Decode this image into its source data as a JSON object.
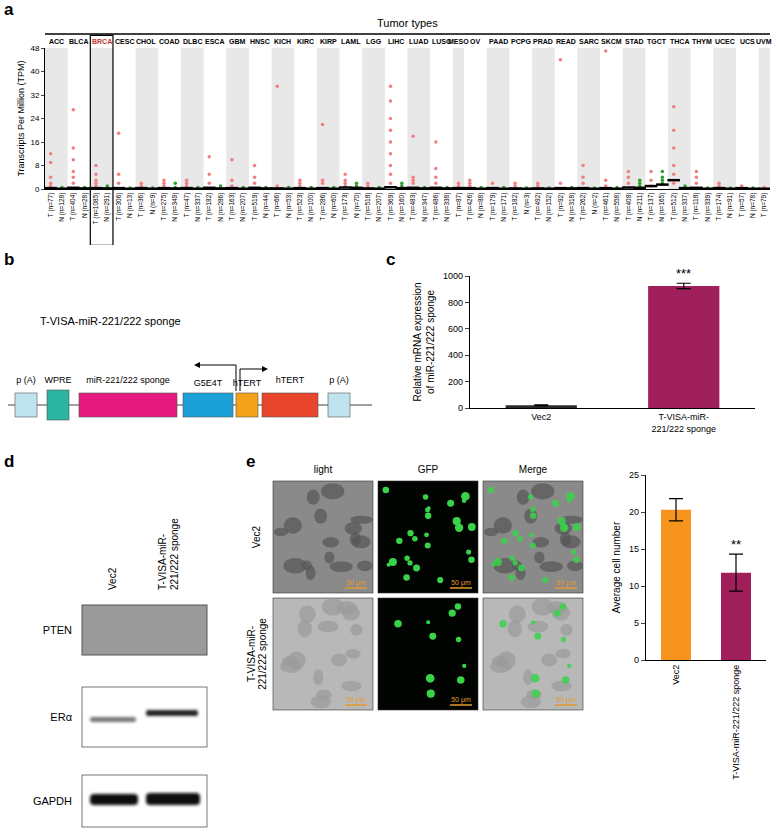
{
  "chart_data": [
    {
      "panel": "a",
      "type": "scatter",
      "title": "Tumor types",
      "ylabel": "Transcripts Per Million (TPM)",
      "ylim": [
        0,
        48
      ],
      "yticks": [
        0,
        8,
        16,
        24,
        32,
        40,
        48
      ],
      "grid": false,
      "highlight": "BRCA",
      "tumor_types": [
        {
          "name": "ACC",
          "groups": [
            {
              "name": "T (n=77)",
              "color": "#f07f82",
              "median": 0.3,
              "values": [
                1,
                2,
                4,
                9,
                12
              ]
            },
            {
              "name": "N (n=128)",
              "color": "#2ca02c",
              "median": 0.1,
              "values": [
                0.5
              ]
            }
          ]
        },
        {
          "name": "BLCA",
          "groups": [
            {
              "name": "T (n=404)",
              "color": "#f07f82",
              "median": 0.4,
              "values": [
                2,
                4,
                6,
                10,
                14,
                27
              ]
            },
            {
              "name": "N (n=28)",
              "color": "#2ca02c",
              "median": 0.2,
              "values": [
                0.5
              ]
            }
          ]
        },
        {
          "name": "BRCA",
          "groups": [
            {
              "name": "T (n=1085)",
              "color": "#f07f82",
              "median": 0.3,
              "values": [
                1,
                2,
                3,
                5,
                8
              ]
            },
            {
              "name": "N (n=291)",
              "color": "#2ca02c",
              "median": 0.2,
              "values": [
                0.5,
                1
              ]
            }
          ]
        },
        {
          "name": "CESC",
          "groups": [
            {
              "name": "T (n=306)",
              "color": "#f07f82",
              "median": 0.3,
              "values": [
                2,
                5,
                19
              ]
            },
            {
              "name": "N (n=13)",
              "color": "#2ca02c",
              "median": 0.1,
              "values": [
                0.3
              ]
            }
          ]
        },
        {
          "name": "CHOL",
          "groups": [
            {
              "name": "T (n=36)",
              "color": "#f07f82",
              "median": 0.3,
              "values": [
                1,
                2
              ]
            },
            {
              "name": "N (n=9)",
              "color": "#2ca02c",
              "median": 0.1,
              "values": [
                0.3
              ]
            }
          ]
        },
        {
          "name": "COAD",
          "groups": [
            {
              "name": "T (n=275)",
              "color": "#f07f82",
              "median": 0.3,
              "values": [
                1,
                2,
                3
              ]
            },
            {
              "name": "N (n=349)",
              "color": "#2ca02c",
              "median": 0.2,
              "values": [
                0.5,
                2
              ]
            }
          ]
        },
        {
          "name": "DLBC",
          "groups": [
            {
              "name": "T (n=47)",
              "color": "#f07f82",
              "median": 0.3,
              "values": [
                1,
                2,
                3
              ]
            },
            {
              "name": "N (n=337)",
              "color": "#2ca02c",
              "median": 0.1,
              "values": [
                0.5
              ]
            }
          ]
        },
        {
          "name": "ESCA",
          "groups": [
            {
              "name": "T (n=182)",
              "color": "#f07f82",
              "median": 0.4,
              "values": [
                2,
                5,
                11
              ]
            },
            {
              "name": "N (n=286)",
              "color": "#2ca02c",
              "median": 0.2,
              "values": [
                0.5,
                1
              ]
            }
          ]
        },
        {
          "name": "GBM",
          "groups": [
            {
              "name": "T (n=163)",
              "color": "#f07f82",
              "median": 0.3,
              "values": [
                1,
                3,
                10
              ]
            },
            {
              "name": "N (n=207)",
              "color": "#2ca02c",
              "median": 0.1,
              "values": [
                0.5
              ]
            }
          ]
        },
        {
          "name": "HNSC",
          "groups": [
            {
              "name": "T (n=519)",
              "color": "#f07f82",
              "median": 0.4,
              "values": [
                2,
                4,
                8
              ]
            },
            {
              "name": "N (n=44)",
              "color": "#2ca02c",
              "median": 0.2,
              "values": [
                0.5
              ]
            }
          ]
        },
        {
          "name": "KICH",
          "groups": [
            {
              "name": "T (n=66)",
              "color": "#f07f82",
              "median": 0.2,
              "values": [
                1,
                35
              ]
            },
            {
              "name": "N (n=53)",
              "color": "#2ca02c",
              "median": 0.1,
              "values": [
                0.5
              ]
            }
          ]
        },
        {
          "name": "KIRC",
          "groups": [
            {
              "name": "T (n=523)",
              "color": "#f07f82",
              "median": 0.3,
              "values": [
                1,
                2,
                3
              ]
            },
            {
              "name": "N (n=100)",
              "color": "#2ca02c",
              "median": 0.1,
              "values": [
                0.5
              ]
            }
          ]
        },
        {
          "name": "KIRP",
          "groups": [
            {
              "name": "T (n=286)",
              "color": "#f07f82",
              "median": 0.3,
              "values": [
                2,
                3,
                22
              ]
            },
            {
              "name": "N (n=60)",
              "color": "#2ca02c",
              "median": 0.1,
              "values": [
                0.5
              ]
            }
          ]
        },
        {
          "name": "LAML",
          "groups": [
            {
              "name": "T (n=173)",
              "color": "#f07f82",
              "median": 0.5,
              "values": [
                1,
                2,
                3,
                5
              ]
            },
            {
              "name": "N (n=70)",
              "color": "#2ca02c",
              "median": 0.4,
              "values": [
                1,
                2
              ]
            }
          ]
        },
        {
          "name": "LGG",
          "groups": [
            {
              "name": "T (n=518)",
              "color": "#f07f82",
              "median": 0.2,
              "values": [
                1,
                2
              ]
            },
            {
              "name": "N (n=207)",
              "color": "#2ca02c",
              "median": 0.1,
              "values": [
                0.5
              ]
            }
          ]
        },
        {
          "name": "LIHC",
          "groups": [
            {
              "name": "T (n=369)",
              "color": "#f07f82",
              "median": 0.6,
              "values": [
                2,
                5,
                8,
                12,
                16,
                20,
                24,
                30,
                35
              ]
            },
            {
              "name": "N (n=160)",
              "color": "#2ca02c",
              "median": 0.3,
              "values": [
                1,
                2
              ]
            }
          ]
        },
        {
          "name": "LUAD",
          "groups": [
            {
              "name": "T (n=483)",
              "color": "#f07f82",
              "median": 0.4,
              "values": [
                2,
                3,
                4,
                18
              ]
            },
            {
              "name": "N (n=347)",
              "color": "#2ca02c",
              "median": 0.2,
              "values": [
                0.5
              ]
            }
          ]
        },
        {
          "name": "LUSC",
          "groups": [
            {
              "name": "T (n=486)",
              "color": "#f07f82",
              "median": 0.4,
              "values": [
                2,
                4,
                7,
                16
              ]
            },
            {
              "name": "N (n=338)",
              "color": "#2ca02c",
              "median": 0.2,
              "values": [
                0.5
              ]
            }
          ]
        },
        {
          "name": "MESO",
          "groups": [
            {
              "name": "T (n=87)",
              "color": "#f07f82",
              "median": 0.3,
              "values": [
                1,
                2
              ]
            }
          ]
        },
        {
          "name": "OV",
          "groups": [
            {
              "name": "T (n=426)",
              "color": "#f07f82",
              "median": 0.3,
              "values": [
                1,
                2,
                3
              ]
            },
            {
              "name": "N (n=88)",
              "color": "#2ca02c",
              "median": 0.1,
              "values": [
                0.5
              ]
            }
          ]
        },
        {
          "name": "PAAD",
          "groups": [
            {
              "name": "T (n=179)",
              "color": "#f07f82",
              "median": 0.3,
              "values": [
                2
              ]
            },
            {
              "name": "N (n=171)",
              "color": "#2ca02c",
              "median": 0.1,
              "values": [
                0.5
              ]
            }
          ]
        },
        {
          "name": "PCPG",
          "groups": [
            {
              "name": "T (n=182)",
              "color": "#f07f82",
              "median": 0.2,
              "values": [
                1,
                2
              ]
            },
            {
              "name": "N (n=3)",
              "color": "#2ca02c",
              "median": 0.1,
              "values": [
                0.3
              ]
            }
          ]
        },
        {
          "name": "PRAD",
          "groups": [
            {
              "name": "T (n=492)",
              "color": "#f07f82",
              "median": 0.2,
              "values": [
                1,
                2
              ]
            },
            {
              "name": "N (n=152)",
              "color": "#2ca02c",
              "median": 0.1,
              "values": [
                0.3
              ]
            }
          ]
        },
        {
          "name": "READ",
          "groups": [
            {
              "name": "T (n=92)",
              "color": "#f07f82",
              "median": 0.3,
              "values": [
                2,
                44
              ]
            },
            {
              "name": "N (n=318)",
              "color": "#2ca02c",
              "median": 0.2,
              "values": [
                0.5
              ]
            }
          ]
        },
        {
          "name": "SARC",
          "groups": [
            {
              "name": "T (n=262)",
              "color": "#f07f82",
              "median": 0.3,
              "values": [
                2,
                4,
                8
              ]
            },
            {
              "name": "N (n=2)",
              "color": "#2ca02c",
              "median": 0.1,
              "values": [
                0.3
              ]
            }
          ]
        },
        {
          "name": "SKCM",
          "groups": [
            {
              "name": "T (n=461)",
              "color": "#f07f82",
              "median": 0.3,
              "values": [
                1,
                3,
                47
              ]
            },
            {
              "name": "N (n=558)",
              "color": "#2ca02c",
              "median": 0.1,
              "values": [
                0.5
              ]
            }
          ]
        },
        {
          "name": "STAD",
          "groups": [
            {
              "name": "T (n=408)",
              "color": "#f07f82",
              "median": 0.5,
              "values": [
                2,
                4,
                6
              ]
            },
            {
              "name": "N (n=211)",
              "color": "#2ca02c",
              "median": 0.4,
              "values": [
                1,
                2,
                3
              ]
            }
          ]
        },
        {
          "name": "TGCT",
          "groups": [
            {
              "name": "T (n=137)",
              "color": "#f07f82",
              "median": 1,
              "values": [
                1,
                3,
                6
              ]
            },
            {
              "name": "N (n=165)",
              "color": "#2ca02c",
              "median": 1.5,
              "values": [
                2,
                3,
                4,
                6
              ]
            }
          ]
        },
        {
          "name": "THCA",
          "groups": [
            {
              "name": "T (n=512)",
              "color": "#f07f82",
              "median": 3,
              "values": [
                2,
                5,
                8,
                14,
                20,
                28
              ]
            },
            {
              "name": "N (n=337)",
              "color": "#2ca02c",
              "median": 0.3,
              "values": [
                0.5,
                1
              ]
            }
          ]
        },
        {
          "name": "THYM",
          "groups": [
            {
              "name": "T (n=118)",
              "color": "#f07f82",
              "median": 0.4,
              "values": [
                2,
                4,
                6
              ]
            },
            {
              "name": "N (n=339)",
              "color": "#2ca02c",
              "median": 0.1,
              "values": [
                0.3
              ]
            }
          ]
        },
        {
          "name": "UCEC",
          "groups": [
            {
              "name": "T (n=174)",
              "color": "#f07f82",
              "median": 0.3,
              "values": [
                1,
                2
              ]
            },
            {
              "name": "N (n=91)",
              "color": "#2ca02c",
              "median": 0.1,
              "values": [
                0.3
              ]
            }
          ]
        },
        {
          "name": "UCS",
          "groups": [
            {
              "name": "T (n=57)",
              "color": "#f07f82",
              "median": 0.3,
              "values": [
                1
              ]
            },
            {
              "name": "N (n=78)",
              "color": "#2ca02c",
              "median": 0.1,
              "values": [
                0.3
              ]
            }
          ]
        },
        {
          "name": "UVM",
          "groups": [
            {
              "name": "T (n=79)",
              "color": "#f07f82",
              "median": 0.1,
              "values": [
                0.5
              ]
            }
          ]
        }
      ]
    },
    {
      "panel": "c",
      "type": "bar",
      "ylabel": [
        "Relative mRNA expression",
        "of miR-221/222 sponge"
      ],
      "categories": [
        "Vec2",
        "T-VISA-miR-221/222 sponge"
      ],
      "values": [
        20,
        925
      ],
      "errors": [
        3,
        20
      ],
      "colors": [
        "#2b2b2b",
        "#9e1f5a"
      ],
      "ylim": [
        0,
        1000
      ],
      "yticks": [
        0,
        200,
        400,
        600,
        800,
        1000
      ],
      "grid": false,
      "annotations": [
        {
          "category": "T-VISA-miR-221/222 sponge",
          "text": "***"
        }
      ]
    },
    {
      "panel": "e",
      "type": "bar",
      "ylabel": "Average cell number",
      "categories": [
        "Vec2",
        "T-VISA-miR-221/222 sponge"
      ],
      "values": [
        20.3,
        11.8
      ],
      "errors": [
        1.5,
        2.5
      ],
      "colors": [
        "#f7941d",
        "#9e1f5a"
      ],
      "ylim": [
        0,
        25
      ],
      "yticks": [
        0,
        5,
        10,
        15,
        20,
        25
      ],
      "grid": false,
      "annotations": [
        {
          "category": "T-VISA-miR-221/222 sponge",
          "text": "**"
        }
      ]
    }
  ],
  "panel_b": {
    "label": "b",
    "title": "T-VISA-miR-221/222 sponge",
    "elements": [
      {
        "label": "p (A)",
        "color": "#bfe3ef"
      },
      {
        "label": "WPRE",
        "color": "#2bb5a0"
      },
      {
        "label": "miR-221/222 sponge",
        "color": "#e6197e"
      },
      {
        "label": "G5E4T",
        "color": "#1ba1d8"
      },
      {
        "label": "hTERT",
        "color": "#f5a21b"
      },
      {
        "label": "hTERT",
        "color": "#e8452c"
      },
      {
        "label": "p (A)",
        "color": "#bfe3ef"
      }
    ]
  },
  "panel_d": {
    "label": "d",
    "lanes": [
      "Vec2",
      "T-VISA-miR-221/222 sponge"
    ],
    "rows": [
      "PTEN",
      "ERα",
      "GAPDH"
    ]
  },
  "panel_e_images": {
    "columns": [
      "light",
      "GFP",
      "Merge"
    ],
    "rows": [
      "Vec2",
      "T-VISA-miR-221/222 sponge"
    ],
    "scale_bar": "50 μm"
  }
}
